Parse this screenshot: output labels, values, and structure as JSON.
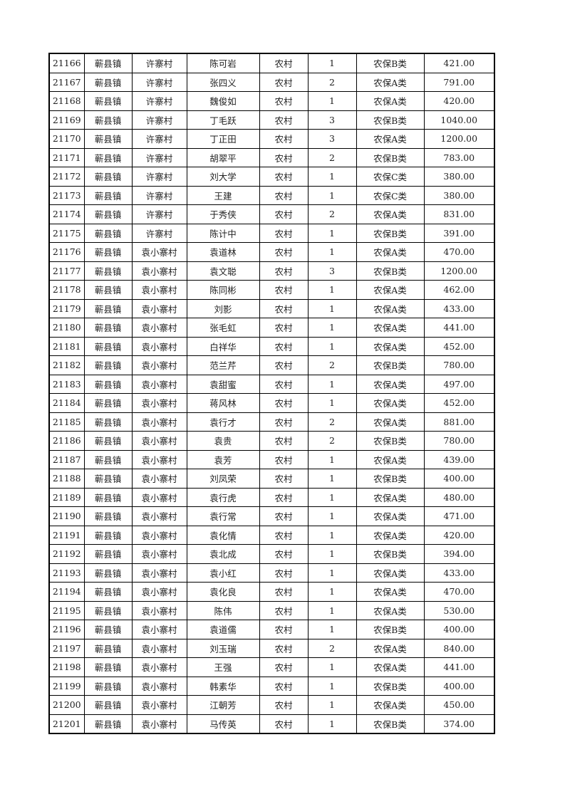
{
  "table": {
    "rows": [
      [
        "21166",
        "蕲县镇",
        "许寨村",
        "陈可岩",
        "农村",
        "1",
        "农保B类",
        "421.00"
      ],
      [
        "21167",
        "蕲县镇",
        "许寨村",
        "张四义",
        "农村",
        "2",
        "农保A类",
        "791.00"
      ],
      [
        "21168",
        "蕲县镇",
        "许寨村",
        "魏俊如",
        "农村",
        "1",
        "农保A类",
        "420.00"
      ],
      [
        "21169",
        "蕲县镇",
        "许寨村",
        "丁毛跃",
        "农村",
        "3",
        "农保B类",
        "1040.00"
      ],
      [
        "21170",
        "蕲县镇",
        "许寨村",
        "丁正田",
        "农村",
        "3",
        "农保A类",
        "1200.00"
      ],
      [
        "21171",
        "蕲县镇",
        "许寨村",
        "胡翠平",
        "农村",
        "2",
        "农保B类",
        "783.00"
      ],
      [
        "21172",
        "蕲县镇",
        "许寨村",
        "刘大学",
        "农村",
        "1",
        "农保C类",
        "380.00"
      ],
      [
        "21173",
        "蕲县镇",
        "许寨村",
        "王建",
        "农村",
        "1",
        "农保C类",
        "380.00"
      ],
      [
        "21174",
        "蕲县镇",
        "许寨村",
        "于秀侠",
        "农村",
        "2",
        "农保A类",
        "831.00"
      ],
      [
        "21175",
        "蕲县镇",
        "许寨村",
        "陈计中",
        "农村",
        "1",
        "农保B类",
        "391.00"
      ],
      [
        "21176",
        "蕲县镇",
        "袁小寨村",
        "袁道林",
        "农村",
        "1",
        "农保A类",
        "470.00"
      ],
      [
        "21177",
        "蕲县镇",
        "袁小寨村",
        "袁文聪",
        "农村",
        "3",
        "农保B类",
        "1200.00"
      ],
      [
        "21178",
        "蕲县镇",
        "袁小寨村",
        "陈同彬",
        "农村",
        "1",
        "农保A类",
        "462.00"
      ],
      [
        "21179",
        "蕲县镇",
        "袁小寨村",
        "刘影",
        "农村",
        "1",
        "农保A类",
        "433.00"
      ],
      [
        "21180",
        "蕲县镇",
        "袁小寨村",
        "张毛虹",
        "农村",
        "1",
        "农保A类",
        "441.00"
      ],
      [
        "21181",
        "蕲县镇",
        "袁小寨村",
        "白祥华",
        "农村",
        "1",
        "农保A类",
        "452.00"
      ],
      [
        "21182",
        "蕲县镇",
        "袁小寨村",
        "范兰芹",
        "农村",
        "2",
        "农保B类",
        "780.00"
      ],
      [
        "21183",
        "蕲县镇",
        "袁小寨村",
        "袁甜蜜",
        "农村",
        "1",
        "农保A类",
        "497.00"
      ],
      [
        "21184",
        "蕲县镇",
        "袁小寨村",
        "蒋风林",
        "农村",
        "1",
        "农保A类",
        "452.00"
      ],
      [
        "21185",
        "蕲县镇",
        "袁小寨村",
        "袁行才",
        "农村",
        "2",
        "农保A类",
        "881.00"
      ],
      [
        "21186",
        "蕲县镇",
        "袁小寨村",
        "袁贵",
        "农村",
        "2",
        "农保B类",
        "780.00"
      ],
      [
        "21187",
        "蕲县镇",
        "袁小寨村",
        "袁芳",
        "农村",
        "1",
        "农保A类",
        "439.00"
      ],
      [
        "21188",
        "蕲县镇",
        "袁小寨村",
        "刘凤荣",
        "农村",
        "1",
        "农保B类",
        "400.00"
      ],
      [
        "21189",
        "蕲县镇",
        "袁小寨村",
        "袁行虎",
        "农村",
        "1",
        "农保A类",
        "480.00"
      ],
      [
        "21190",
        "蕲县镇",
        "袁小寨村",
        "袁行常",
        "农村",
        "1",
        "农保A类",
        "471.00"
      ],
      [
        "21191",
        "蕲县镇",
        "袁小寨村",
        "袁化情",
        "农村",
        "1",
        "农保A类",
        "420.00"
      ],
      [
        "21192",
        "蕲县镇",
        "袁小寨村",
        "袁北成",
        "农村",
        "1",
        "农保B类",
        "394.00"
      ],
      [
        "21193",
        "蕲县镇",
        "袁小寨村",
        "袁小红",
        "农村",
        "1",
        "农保A类",
        "433.00"
      ],
      [
        "21194",
        "蕲县镇",
        "袁小寨村",
        "袁化良",
        "农村",
        "1",
        "农保A类",
        "470.00"
      ],
      [
        "21195",
        "蕲县镇",
        "袁小寨村",
        "陈伟",
        "农村",
        "1",
        "农保A类",
        "530.00"
      ],
      [
        "21196",
        "蕲县镇",
        "袁小寨村",
        "袁道儒",
        "农村",
        "1",
        "农保B类",
        "400.00"
      ],
      [
        "21197",
        "蕲县镇",
        "袁小寨村",
        "刘玉瑞",
        "农村",
        "2",
        "农保A类",
        "840.00"
      ],
      [
        "21198",
        "蕲县镇",
        "袁小寨村",
        "王强",
        "农村",
        "1",
        "农保A类",
        "441.00"
      ],
      [
        "21199",
        "蕲县镇",
        "袁小寨村",
        "韩素华",
        "农村",
        "1",
        "农保B类",
        "400.00"
      ],
      [
        "21200",
        "蕲县镇",
        "袁小寨村",
        "江朝芳",
        "农村",
        "1",
        "农保A类",
        "450.00"
      ],
      [
        "21201",
        "蕲县镇",
        "袁小寨村",
        "马传英",
        "农村",
        "1",
        "农保B类",
        "374.00"
      ]
    ]
  }
}
